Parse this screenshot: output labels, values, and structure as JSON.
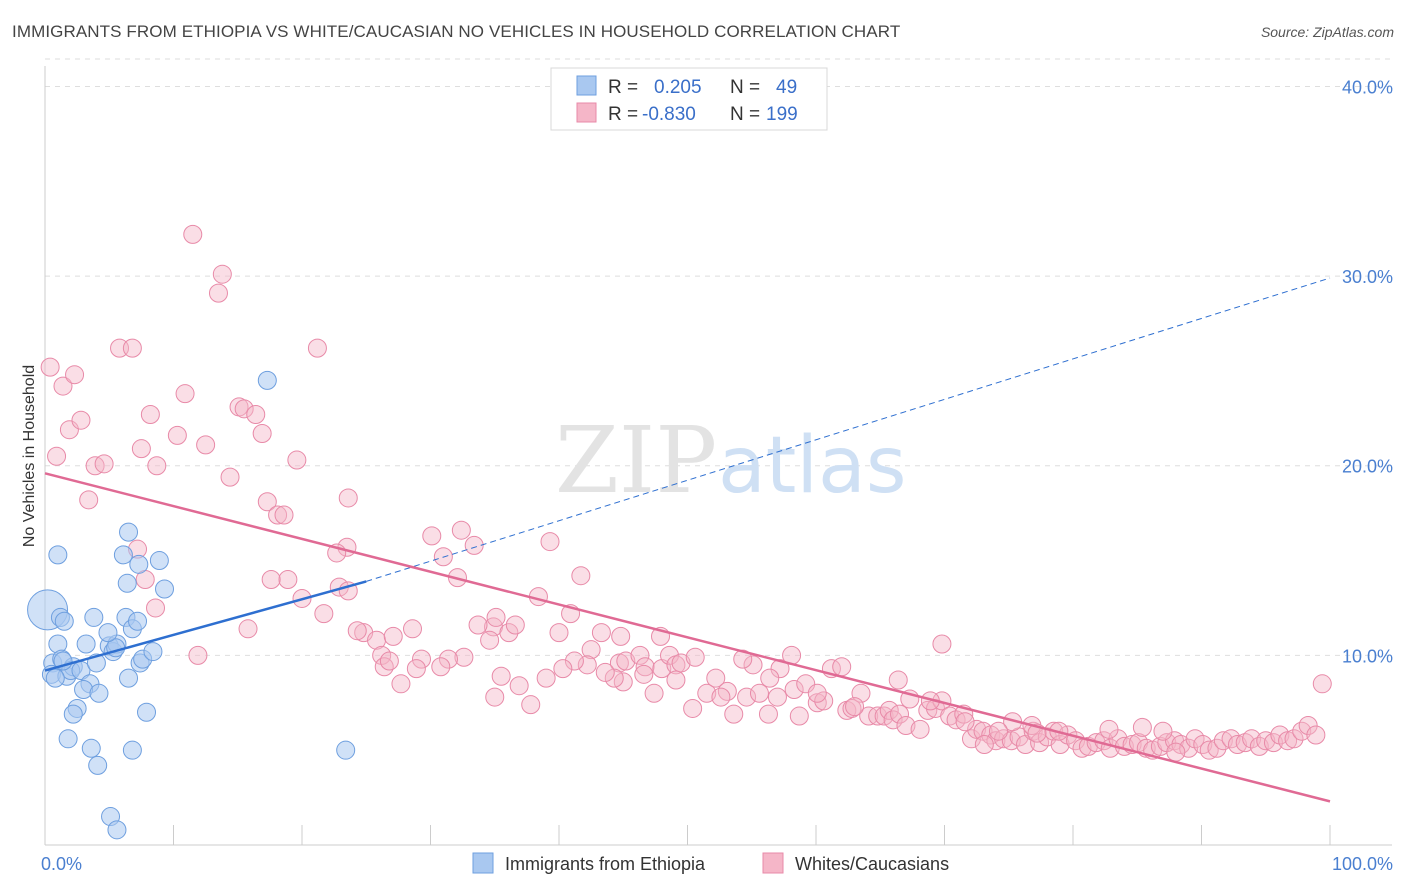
{
  "title": "IMMIGRANTS FROM ETHIOPIA VS WHITE/CAUCASIAN NO VEHICLES IN HOUSEHOLD CORRELATION CHART",
  "source": "Source: ZipAtlas.com",
  "watermark": {
    "zip": "ZIP",
    "atlas": "atlas"
  },
  "colors": {
    "blue_fill": "#a9c8f0",
    "blue_stroke": "#6e9fdf",
    "blue_line": "#2e6fd0",
    "pink_fill": "#f5b6c8",
    "pink_stroke": "#e88aa8",
    "pink_line": "#e06a94",
    "grid": "#dedede",
    "tick_text": "#4a7fd0"
  },
  "legend": {
    "rows": [
      {
        "r_label": "R =",
        "r_value": "0.205",
        "n_label": "N =",
        "n_value": "49"
      },
      {
        "r_label": "R =",
        "r_value": "-0.830",
        "n_label": "N =",
        "n_value": "199"
      }
    ]
  },
  "bottom_legend": [
    "Immigrants from Ethiopia",
    "Whites/Caucasians"
  ],
  "chart_data": {
    "type": "scatter",
    "title": "IMMIGRANTS FROM ETHIOPIA VS WHITE/CAUCASIAN NO VEHICLES IN HOUSEHOLD CORRELATION CHART",
    "xlabel": "",
    "ylabel": "No Vehicles in Household",
    "xlim": [
      0,
      100
    ],
    "ylim": [
      0,
      41.5
    ],
    "x_ticks": [
      "0.0%",
      "100.0%"
    ],
    "y_ticks": [
      {
        "v": 10,
        "label": "10.0%"
      },
      {
        "v": 20,
        "label": "20.0%"
      },
      {
        "v": 30,
        "label": "30.0%"
      },
      {
        "v": 40,
        "label": "40.0%"
      }
    ],
    "grid": true,
    "legend_position": "top-center",
    "series": [
      {
        "name": "Immigrants from Ethiopia",
        "color": "#a9c8f0",
        "trend": {
          "x0": 0,
          "y0": 9.2,
          "x1": 25,
          "y1": 13.9,
          "extend_to_x": 100,
          "extend_y": 29.9
        },
        "points": [
          [
            0.2,
            12.4
          ],
          [
            1.0,
            15.3
          ],
          [
            1.2,
            12.0
          ],
          [
            1.5,
            11.8
          ],
          [
            1.0,
            10.6
          ],
          [
            0.6,
            9.6
          ],
          [
            1.3,
            9.8
          ],
          [
            0.5,
            9.0
          ],
          [
            1.7,
            8.9
          ],
          [
            2.2,
            9.4
          ],
          [
            2.0,
            9.2
          ],
          [
            2.8,
            9.2
          ],
          [
            3.2,
            10.6
          ],
          [
            3.8,
            12.0
          ],
          [
            4.0,
            9.6
          ],
          [
            3.5,
            8.5
          ],
          [
            3.0,
            8.2
          ],
          [
            4.2,
            8.0
          ],
          [
            2.5,
            7.2
          ],
          [
            2.2,
            6.9
          ],
          [
            1.8,
            5.6
          ],
          [
            3.6,
            5.1
          ],
          [
            4.1,
            4.2
          ],
          [
            5.0,
            10.5
          ],
          [
            5.3,
            10.2
          ],
          [
            5.6,
            10.6
          ],
          [
            5.5,
            10.4
          ],
          [
            4.9,
            11.2
          ],
          [
            6.3,
            12.0
          ],
          [
            6.1,
            15.3
          ],
          [
            6.5,
            16.5
          ],
          [
            6.8,
            11.4
          ],
          [
            7.2,
            11.8
          ],
          [
            6.4,
            13.8
          ],
          [
            7.3,
            14.8
          ],
          [
            8.9,
            15.0
          ],
          [
            9.3,
            13.5
          ],
          [
            7.4,
            9.6
          ],
          [
            7.6,
            9.8
          ],
          [
            8.4,
            10.2
          ],
          [
            6.5,
            8.8
          ],
          [
            7.9,
            7.0
          ],
          [
            6.8,
            5.0
          ],
          [
            5.1,
            1.5
          ],
          [
            5.6,
            0.8
          ],
          [
            17.3,
            24.5
          ],
          [
            23.4,
            5.0
          ],
          [
            0.8,
            8.8
          ],
          [
            1.4,
            9.7
          ]
        ]
      },
      {
        "name": "Whites/Caucasians",
        "color": "#f5b6c8",
        "trend": {
          "x0": 0,
          "y0": 19.6,
          "x1": 100,
          "y1": 2.3
        },
        "points": [
          [
            0.4,
            25.2
          ],
          [
            1.4,
            24.2
          ],
          [
            2.3,
            24.8
          ],
          [
            0.9,
            20.5
          ],
          [
            1.9,
            21.9
          ],
          [
            2.8,
            22.4
          ],
          [
            3.9,
            20.0
          ],
          [
            4.6,
            20.1
          ],
          [
            3.4,
            18.2
          ],
          [
            5.8,
            26.2
          ],
          [
            6.8,
            26.2
          ],
          [
            8.2,
            22.7
          ],
          [
            7.5,
            20.9
          ],
          [
            8.7,
            20.0
          ],
          [
            10.3,
            21.6
          ],
          [
            10.9,
            23.8
          ],
          [
            11.5,
            32.2
          ],
          [
            13.5,
            29.1
          ],
          [
            13.8,
            30.1
          ],
          [
            12.5,
            21.1
          ],
          [
            14.4,
            19.4
          ],
          [
            15.1,
            23.1
          ],
          [
            15.5,
            23.0
          ],
          [
            16.4,
            22.7
          ],
          [
            16.9,
            21.7
          ],
          [
            17.3,
            18.1
          ],
          [
            18.1,
            17.4
          ],
          [
            18.6,
            17.4
          ],
          [
            19.6,
            20.3
          ],
          [
            21.2,
            26.2
          ],
          [
            23.6,
            18.3
          ],
          [
            23.5,
            15.7
          ],
          [
            22.7,
            15.4
          ],
          [
            18.9,
            14.0
          ],
          [
            20.0,
            13.0
          ],
          [
            22.9,
            13.6
          ],
          [
            21.7,
            12.2
          ],
          [
            23.6,
            13.4
          ],
          [
            24.8,
            11.2
          ],
          [
            25.8,
            10.8
          ],
          [
            26.2,
            10.0
          ],
          [
            26.4,
            9.4
          ],
          [
            27.1,
            11.0
          ],
          [
            27.7,
            8.5
          ],
          [
            28.6,
            11.4
          ],
          [
            29.3,
            9.8
          ],
          [
            30.1,
            16.3
          ],
          [
            31.0,
            15.2
          ],
          [
            32.4,
            16.6
          ],
          [
            33.4,
            15.8
          ],
          [
            32.1,
            14.1
          ],
          [
            34.9,
            11.5
          ],
          [
            35.1,
            12.0
          ],
          [
            33.7,
            11.6
          ],
          [
            34.6,
            10.8
          ],
          [
            36.1,
            11.2
          ],
          [
            36.6,
            11.6
          ],
          [
            38.4,
            13.1
          ],
          [
            39.3,
            16.0
          ],
          [
            40.0,
            11.2
          ],
          [
            40.9,
            12.2
          ],
          [
            41.7,
            14.2
          ],
          [
            42.5,
            10.3
          ],
          [
            43.3,
            11.2
          ],
          [
            42.2,
            9.5
          ],
          [
            44.7,
            9.6
          ],
          [
            44.8,
            11.0
          ],
          [
            45.2,
            9.7
          ],
          [
            46.3,
            10.0
          ],
          [
            46.7,
            9.4
          ],
          [
            48.0,
            9.3
          ],
          [
            48.6,
            10.0
          ],
          [
            49.1,
            9.5
          ],
          [
            49.5,
            9.6
          ],
          [
            47.4,
            8.0
          ],
          [
            50.4,
            7.2
          ],
          [
            51.5,
            8.0
          ],
          [
            52.2,
            8.8
          ],
          [
            53.1,
            8.1
          ],
          [
            52.6,
            7.8
          ],
          [
            54.6,
            7.8
          ],
          [
            55.6,
            8.0
          ],
          [
            55.1,
            9.5
          ],
          [
            56.3,
            6.9
          ],
          [
            57.0,
            7.8
          ],
          [
            57.2,
            9.3
          ],
          [
            58.3,
            8.2
          ],
          [
            58.7,
            6.8
          ],
          [
            59.2,
            8.5
          ],
          [
            60.1,
            7.5
          ],
          [
            60.6,
            7.6
          ],
          [
            61.2,
            9.3
          ],
          [
            62.0,
            9.4
          ],
          [
            62.4,
            7.1
          ],
          [
            62.8,
            7.2
          ],
          [
            63.5,
            8.0
          ],
          [
            64.1,
            6.8
          ],
          [
            64.8,
            6.8
          ],
          [
            65.3,
            6.8
          ],
          [
            65.7,
            7.1
          ],
          [
            66.0,
            6.6
          ],
          [
            66.5,
            6.9
          ],
          [
            67.3,
            7.7
          ],
          [
            67.0,
            6.3
          ],
          [
            68.1,
            6.1
          ],
          [
            68.7,
            7.1
          ],
          [
            69.3,
            7.2
          ],
          [
            69.8,
            7.6
          ],
          [
            70.4,
            6.8
          ],
          [
            70.9,
            6.6
          ],
          [
            71.5,
            6.9
          ],
          [
            72.1,
            5.6
          ],
          [
            72.5,
            6.1
          ],
          [
            73.0,
            6.0
          ],
          [
            73.6,
            5.8
          ],
          [
            74.0,
            5.5
          ],
          [
            74.6,
            5.6
          ],
          [
            75.2,
            5.5
          ],
          [
            75.8,
            5.7
          ],
          [
            76.3,
            5.3
          ],
          [
            76.9,
            6.0
          ],
          [
            77.4,
            5.4
          ],
          [
            78.0,
            5.7
          ],
          [
            78.5,
            6.0
          ],
          [
            79.0,
            5.3
          ],
          [
            79.6,
            5.8
          ],
          [
            80.2,
            5.5
          ],
          [
            80.7,
            5.1
          ],
          [
            81.2,
            5.2
          ],
          [
            81.8,
            5.4
          ],
          [
            82.4,
            5.5
          ],
          [
            82.9,
            5.1
          ],
          [
            83.5,
            5.6
          ],
          [
            84.0,
            5.2
          ],
          [
            84.6,
            5.3
          ],
          [
            85.1,
            5.4
          ],
          [
            85.7,
            5.1
          ],
          [
            86.2,
            5.0
          ],
          [
            86.8,
            5.2
          ],
          [
            87.3,
            5.4
          ],
          [
            87.9,
            5.5
          ],
          [
            88.4,
            5.3
          ],
          [
            89.0,
            5.1
          ],
          [
            89.5,
            5.6
          ],
          [
            90.1,
            5.3
          ],
          [
            90.6,
            5.0
          ],
          [
            91.2,
            5.1
          ],
          [
            91.7,
            5.5
          ],
          [
            92.3,
            5.6
          ],
          [
            92.8,
            5.3
          ],
          [
            93.4,
            5.4
          ],
          [
            93.9,
            5.6
          ],
          [
            94.5,
            5.2
          ],
          [
            95.0,
            5.5
          ],
          [
            95.6,
            5.4
          ],
          [
            96.1,
            5.8
          ],
          [
            96.7,
            5.5
          ],
          [
            97.2,
            5.6
          ],
          [
            97.8,
            6.0
          ],
          [
            98.3,
            6.3
          ],
          [
            98.9,
            5.8
          ],
          [
            99.4,
            8.5
          ],
          [
            82.8,
            6.1
          ],
          [
            85.4,
            6.2
          ],
          [
            69.8,
            10.6
          ],
          [
            78.9,
            6.0
          ],
          [
            76.8,
            6.3
          ],
          [
            75.3,
            6.5
          ],
          [
            77.2,
            5.9
          ],
          [
            74.2,
            6.0
          ],
          [
            71.6,
            6.5
          ],
          [
            88.0,
            4.9
          ],
          [
            87.0,
            6.0
          ],
          [
            53.6,
            6.9
          ],
          [
            73.1,
            5.3
          ],
          [
            63.0,
            7.3
          ],
          [
            66.4,
            8.7
          ],
          [
            68.9,
            7.6
          ],
          [
            60.1,
            8.0
          ],
          [
            58.1,
            10.0
          ],
          [
            56.4,
            8.8
          ],
          [
            54.3,
            9.8
          ],
          [
            50.6,
            9.9
          ],
          [
            49.1,
            8.7
          ],
          [
            47.9,
            11.0
          ],
          [
            46.6,
            9.0
          ],
          [
            45.0,
            8.6
          ],
          [
            44.3,
            8.8
          ],
          [
            43.6,
            9.1
          ],
          [
            41.2,
            9.7
          ],
          [
            40.3,
            9.3
          ],
          [
            39.0,
            8.8
          ],
          [
            37.8,
            7.4
          ],
          [
            36.9,
            8.4
          ],
          [
            35.5,
            8.9
          ],
          [
            35.0,
            7.8
          ],
          [
            32.6,
            9.9
          ],
          [
            31.4,
            9.8
          ],
          [
            30.8,
            9.4
          ],
          [
            28.9,
            9.3
          ],
          [
            26.8,
            9.7
          ],
          [
            24.3,
            11.3
          ],
          [
            17.6,
            14.0
          ],
          [
            15.8,
            11.4
          ],
          [
            11.9,
            10.0
          ],
          [
            8.6,
            12.5
          ],
          [
            7.8,
            14.0
          ],
          [
            7.2,
            15.6
          ]
        ]
      }
    ]
  }
}
